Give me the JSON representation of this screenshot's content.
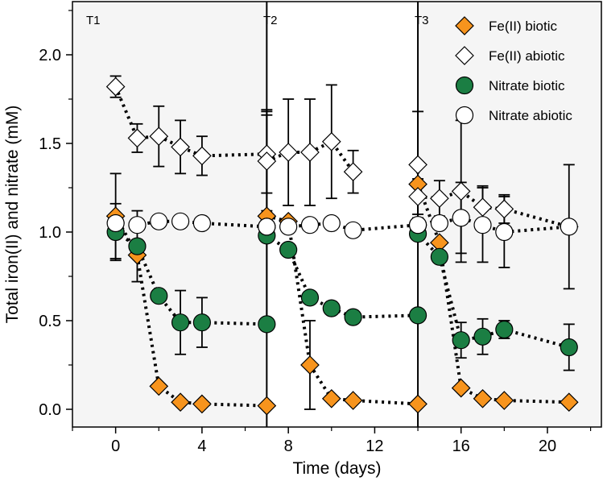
{
  "chart_data": {
    "type": "scatter",
    "xlabel": "Time (days)",
    "ylabel": "Total iron(II) and nitrate (mM)",
    "xlim": [
      -2,
      22.5
    ],
    "ylim": [
      -0.1,
      2.3
    ],
    "xticks": [
      0,
      4,
      8,
      12,
      16,
      20
    ],
    "yticks": [
      0.0,
      0.5,
      1.0,
      1.5,
      2.0
    ],
    "ytick_labels": [
      "0.0",
      "0.5",
      "1.0",
      "1.5",
      "2.0"
    ],
    "grid": false,
    "legend_position": "top-right",
    "periods": [
      {
        "label": "T1",
        "start": -2,
        "end": 7,
        "shaded": true
      },
      {
        "label": "T2",
        "start": 7,
        "end": 14,
        "shaded": false
      },
      {
        "label": "T3",
        "start": 14,
        "end": 22.5,
        "shaded": true
      }
    ],
    "boundaries": [
      7,
      14
    ],
    "series": [
      {
        "name": "Fe(II) biotic",
        "marker": "diamond",
        "fill": "#f7941d",
        "segments": [
          [
            [
              0,
              1.09,
              0.24
            ],
            [
              1,
              0.87,
              0
            ],
            [
              2,
              0.13,
              0
            ],
            [
              3,
              0.04,
              0
            ],
            [
              4,
              0.03,
              0
            ],
            [
              7,
              0.02,
              0
            ]
          ],
          [
            [
              7,
              1.09,
              0.6
            ],
            [
              8,
              1.06,
              0
            ],
            [
              9,
              0.25,
              0.25
            ],
            [
              10,
              0.06,
              0
            ],
            [
              11,
              0.05,
              0
            ],
            [
              14,
              0.03,
              0
            ]
          ],
          [
            [
              14,
              1.27,
              0
            ],
            [
              15,
              0.94,
              0
            ],
            [
              16,
              0.12,
              0
            ],
            [
              17,
              0.06,
              0
            ],
            [
              18,
              0.05,
              0
            ],
            [
              21,
              0.04,
              0
            ]
          ]
        ]
      },
      {
        "name": "Fe(II) abiotic",
        "marker": "diamond",
        "fill": "#ffffff",
        "segments": [
          [
            [
              0,
              1.82,
              0.06
            ],
            [
              1,
              1.53,
              0.08
            ],
            [
              2,
              1.54,
              0.17
            ],
            [
              3,
              1.48,
              0.15
            ],
            [
              4,
              1.43,
              0.11
            ],
            [
              7,
              1.44,
              0.22
            ]
          ],
          [
            [
              7,
              1.4,
              0.28
            ],
            [
              8,
              1.45,
              0.3
            ],
            [
              9,
              1.45,
              0.3
            ],
            [
              10,
              1.51,
              0.32
            ],
            [
              11,
              1.34,
              0.12
            ]
          ],
          [
            [
              14,
              1.38,
              0.3
            ],
            [
              14,
              1.2,
              0.1
            ],
            [
              15,
              1.19,
              0.1
            ],
            [
              16,
              1.23,
              0.4
            ],
            [
              17,
              1.14,
              0.12
            ],
            [
              18,
              1.13,
              0.08
            ],
            [
              21,
              1.03,
              0
            ]
          ]
        ]
      },
      {
        "name": "Nitrate biotic",
        "marker": "circle",
        "fill": "#1b7e43",
        "segments": [
          [
            [
              0,
              1.0,
              0.16
            ],
            [
              1,
              0.92,
              0.2
            ],
            [
              2,
              0.64,
              0
            ],
            [
              3,
              0.49,
              0.18
            ],
            [
              4,
              0.49,
              0.14
            ],
            [
              7,
              0.48,
              0
            ]
          ],
          [
            [
              7,
              0.98,
              0
            ],
            [
              8,
              0.9,
              0
            ],
            [
              9,
              0.63,
              0
            ],
            [
              10,
              0.57,
              0
            ],
            [
              11,
              0.52,
              0
            ],
            [
              14,
              0.53,
              0
            ]
          ],
          [
            [
              14,
              0.99,
              0
            ],
            [
              15,
              0.86,
              0
            ],
            [
              16,
              0.39,
              0.1
            ],
            [
              17,
              0.41,
              0.1
            ],
            [
              18,
              0.45,
              0.05
            ],
            [
              21,
              0.35,
              0.13
            ]
          ]
        ]
      },
      {
        "name": "Nitrate abiotic",
        "marker": "circle",
        "fill": "#ffffff",
        "segments": [
          [
            [
              0,
              1.05,
              0
            ],
            [
              1,
              1.04,
              0
            ],
            [
              2,
              1.06,
              0
            ],
            [
              3,
              1.06,
              0
            ],
            [
              4,
              1.05,
              0
            ],
            [
              7,
              1.03,
              0
            ]
          ],
          [
            [
              7,
              1.03,
              0
            ],
            [
              8,
              1.03,
              0
            ],
            [
              9,
              1.04,
              0
            ],
            [
              10,
              1.05,
              0
            ],
            [
              11,
              1.01,
              0
            ],
            [
              14,
              1.04,
              0
            ]
          ],
          [
            [
              14,
              1.04,
              0
            ],
            [
              15,
              1.05,
              0
            ],
            [
              16,
              1.08,
              0.2
            ],
            [
              17,
              1.04,
              0.21
            ],
            [
              18,
              1.0,
              0.2
            ],
            [
              21,
              1.03,
              0.35
            ]
          ]
        ]
      }
    ]
  }
}
